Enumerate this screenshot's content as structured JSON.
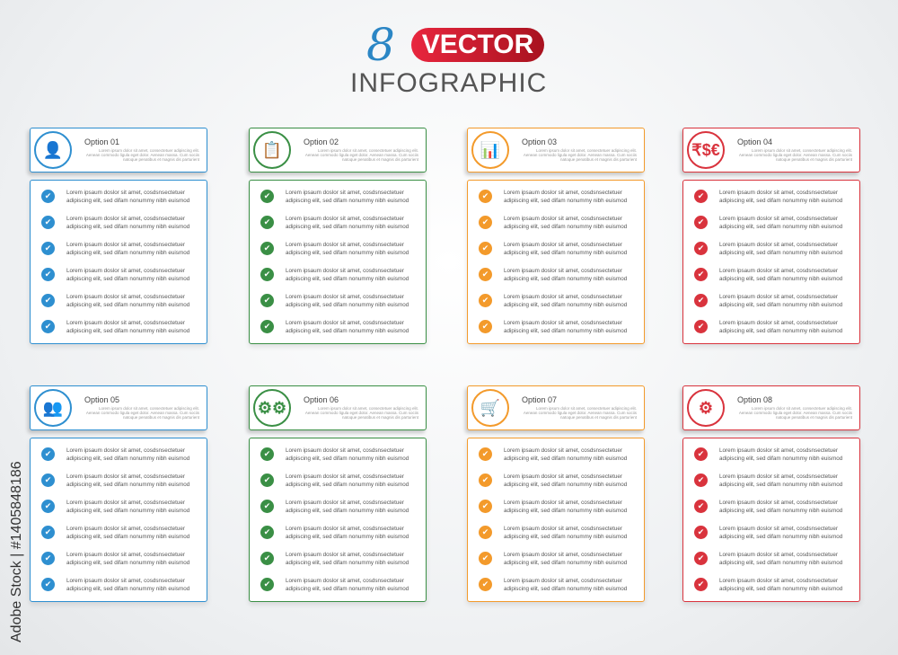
{
  "title": {
    "number": "8",
    "badge": "VECTOR",
    "subtitle": "INFOGRAPHIC"
  },
  "watermark": "Adobe Stock | #1405848186",
  "header_text": "Lorem ipsum dolor sit amet, consectetuer adipiscing elit. Aenean commodo ligula eget dolor. Aenean massa. Cum sociis natoque penatibus et magnis dis parturient",
  "item_text": "Lorem ipsaum doslor sit amet, cosdsnsectetuer adipiscing elit, sed difam nonummy nibh euismod",
  "colors": {
    "blue": "#2e8fd0",
    "green": "#3a8f45",
    "orange": "#f39a2b",
    "red": "#d9333d"
  },
  "options": [
    {
      "label": "Option 01",
      "icon": "person-broadcast-icon",
      "color": "#2e8fd0",
      "symbol": "👤"
    },
    {
      "label": "Option 02",
      "icon": "clipboard-icon",
      "color": "#3a8f45",
      "symbol": "📋"
    },
    {
      "label": "Option 03",
      "icon": "bar-chart-icon",
      "color": "#f39a2b",
      "symbol": "📊"
    },
    {
      "label": "Option 04",
      "icon": "currency-icon",
      "color": "#d9333d",
      "symbol": "₹$€"
    },
    {
      "label": "Option 05",
      "icon": "team-icon",
      "color": "#2e8fd0",
      "symbol": "👥"
    },
    {
      "label": "Option 06",
      "icon": "gears-icon",
      "color": "#3a8f45",
      "symbol": "⚙⚙"
    },
    {
      "label": "Option 07",
      "icon": "shopping-cart-icon",
      "color": "#f39a2b",
      "symbol": "🛒"
    },
    {
      "label": "Option 08",
      "icon": "gear-heart-icon",
      "color": "#d9333d",
      "symbol": "⚙"
    }
  ]
}
